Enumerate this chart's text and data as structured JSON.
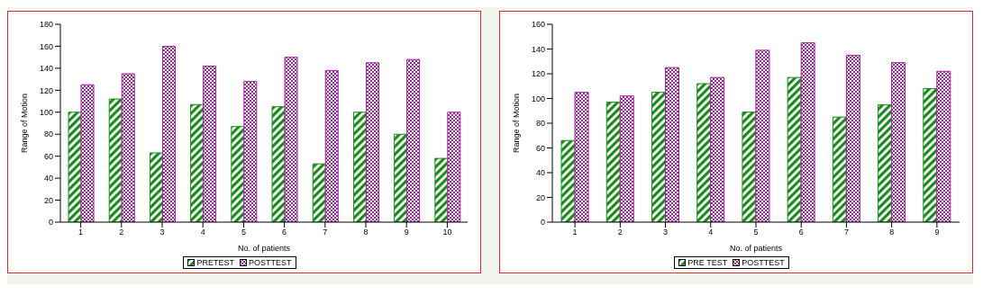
{
  "chart_data": [
    {
      "type": "bar",
      "xlabel": "No. of patients",
      "ylabel": "Range of Motion",
      "categories": [
        "1",
        "2",
        "3",
        "4",
        "5",
        "6",
        "7",
        "8",
        "9",
        "10"
      ],
      "ylim": [
        0,
        180
      ],
      "yticks": [
        0,
        20,
        40,
        60,
        80,
        100,
        120,
        140,
        160,
        180
      ],
      "grid": false,
      "legend": "bottom",
      "series": [
        {
          "name": "PRETEST",
          "color": "#1a8a1a",
          "values": [
            100,
            112,
            63,
            107,
            87,
            105,
            53,
            100,
            80,
            58
          ]
        },
        {
          "name": "POSTTEST",
          "color": "#a020a0",
          "values": [
            125,
            135,
            160,
            142,
            128,
            150,
            138,
            145,
            148,
            100
          ]
        }
      ]
    },
    {
      "type": "bar",
      "xlabel": "No. of patients",
      "ylabel": "Range of Motion",
      "categories": [
        "1",
        "2",
        "3",
        "4",
        "5",
        "6",
        "7",
        "8",
        "9"
      ],
      "ylim": [
        0,
        160
      ],
      "yticks": [
        0,
        20,
        40,
        60,
        80,
        100,
        120,
        140,
        160
      ],
      "grid": false,
      "legend": "bottom",
      "series": [
        {
          "name": "PRE TEST",
          "color": "#1a8a1a",
          "values": [
            66,
            97,
            105,
            112,
            89,
            117,
            85,
            95,
            108
          ]
        },
        {
          "name": "POSTTEST",
          "color": "#a020a0",
          "values": [
            105,
            102,
            125,
            117,
            139,
            145,
            135,
            129,
            122
          ]
        }
      ]
    }
  ]
}
